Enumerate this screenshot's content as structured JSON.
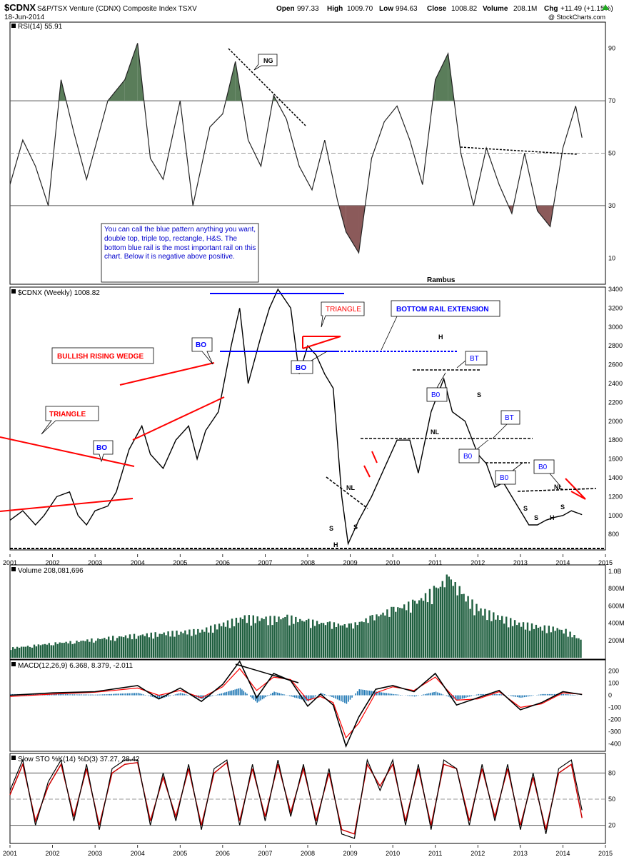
{
  "header": {
    "symbol": "$CDNX",
    "name": "S&P/TSX Venture (CDNX) Composite Index TSXV",
    "date": "18-Jun-2014",
    "open_label": "Open",
    "open": "997.33",
    "high_label": "High",
    "high": "1009.70",
    "low_label": "Low",
    "low": "994.63",
    "close_label": "Close",
    "close": "1008.82",
    "volume_label": "Volume",
    "volume": "208.1M",
    "chg_label": "Chg",
    "chg": "+11.49 (+1.15%)",
    "copyright": "@ StockCharts.com"
  },
  "colors": {
    "price": "#000000",
    "annotation_red": "#ff0000",
    "annotation_blue": "#0000ff",
    "rsi_overbought_fill": "#5a7d5a",
    "rsi_oversold_fill": "#8b5a5a",
    "volume_bars": "#1f5f3f",
    "macd_signal": "#ff0000",
    "macd_histogram": "#1f77b4",
    "sto_d": "#cc0000"
  },
  "chart_data": [
    {
      "type": "line",
      "panel": "rsi",
      "title": "RSI(14) 55.91",
      "ylim": [
        0,
        100
      ],
      "yticks": [
        10,
        30,
        50,
        70,
        90
      ],
      "reference_lines": [
        30,
        50,
        70
      ],
      "x": [
        2001.0,
        2001.3,
        2001.6,
        2001.9,
        2002.2,
        2002.5,
        2002.8,
        2003.0,
        2003.3,
        2003.7,
        2004.0,
        2004.3,
        2004.6,
        2005.0,
        2005.3,
        2005.7,
        2006.0,
        2006.3,
        2006.6,
        2006.9,
        2007.2,
        2007.5,
        2007.8,
        2008.1,
        2008.4,
        2008.7,
        2008.9,
        2009.2,
        2009.5,
        2009.8,
        2010.1,
        2010.4,
        2010.7,
        2011.0,
        2011.3,
        2011.6,
        2011.9,
        2012.2,
        2012.5,
        2012.8,
        2013.1,
        2013.4,
        2013.7,
        2014.0,
        2014.3,
        2014.45
      ],
      "values": [
        38,
        55,
        45,
        30,
        78,
        58,
        40,
        52,
        70,
        78,
        92,
        48,
        40,
        70,
        30,
        60,
        65,
        85,
        55,
        45,
        72,
        63,
        45,
        36,
        55,
        32,
        20,
        12,
        48,
        62,
        68,
        55,
        38,
        78,
        88,
        50,
        30,
        52,
        38,
        27,
        50,
        28,
        22,
        52,
        68,
        55.91
      ],
      "annotations": [
        "NG",
        "Rambus"
      ]
    },
    {
      "type": "line",
      "panel": "price",
      "title": "$CDNX (Weekly) 1008.82",
      "ylim": [
        650,
        3400
      ],
      "yticks": [
        800,
        1000,
        1200,
        1400,
        1600,
        1800,
        2000,
        2200,
        2400,
        2600,
        2800,
        3000,
        3200,
        3400
      ],
      "xticks": [
        "2001",
        "2002",
        "2003",
        "2004",
        "2005",
        "2006",
        "2007",
        "2008",
        "2009",
        "2010",
        "2011",
        "2012",
        "2013",
        "2014",
        "2015"
      ],
      "x": [
        2001.0,
        2001.3,
        2001.6,
        2001.8,
        2002.1,
        2002.4,
        2002.6,
        2002.8,
        2003.0,
        2003.3,
        2003.5,
        2003.8,
        2004.1,
        2004.3,
        2004.6,
        2004.9,
        2005.2,
        2005.4,
        2005.6,
        2005.9,
        2006.2,
        2006.4,
        2006.6,
        2006.9,
        2007.1,
        2007.3,
        2007.6,
        2007.8,
        2008.0,
        2008.2,
        2008.4,
        2008.6,
        2008.8,
        2008.95,
        2009.2,
        2009.5,
        2009.8,
        2010.1,
        2010.4,
        2010.6,
        2010.9,
        2011.2,
        2011.4,
        2011.7,
        2012.0,
        2012.2,
        2012.4,
        2012.6,
        2012.8,
        2013.0,
        2013.2,
        2013.4,
        2013.6,
        2013.8,
        2014.0,
        2014.2,
        2014.45
      ],
      "values": [
        950,
        1050,
        900,
        1000,
        1200,
        1250,
        1000,
        900,
        1050,
        1100,
        1250,
        1700,
        1950,
        1650,
        1500,
        1800,
        1950,
        1600,
        1900,
        2100,
        2800,
        3200,
        2400,
        2900,
        3200,
        3400,
        3200,
        2500,
        2800,
        2700,
        2500,
        2350,
        1200,
        700,
        950,
        1200,
        1500,
        1800,
        1800,
        1450,
        2100,
        2450,
        2100,
        2000,
        1650,
        1550,
        1300,
        1350,
        1200,
        1050,
        900,
        900,
        950,
        980,
        1000,
        1050,
        1008.82
      ],
      "annotations": [
        "TRIANGLE",
        "BULLISH RISING WEDGE",
        "BO",
        "BO",
        "BO",
        "TRIANGLE",
        "BO",
        "BOTTOM RAIL EXTENSION",
        "BT",
        "B0",
        "B0",
        "B0",
        "B0",
        "NL",
        "NL",
        "NL",
        "H",
        "H",
        "H",
        "S",
        "S",
        "S",
        "S",
        "S",
        "S"
      ],
      "note": "You can call the blue pattern anything you want, double top, triple top, rectangle, H&S.  The bottom blue rail is the most important rail on this chart. Below it is negative above positive."
    },
    {
      "type": "bar",
      "panel": "volume",
      "title": "Volume 208,081,696",
      "ylim": [
        0,
        1000000000
      ],
      "yticks": [
        "200M",
        "400M",
        "600M",
        "800M",
        "1.0B"
      ],
      "x": [
        2001.0,
        2001.5,
        2002.0,
        2002.5,
        2003.0,
        2003.5,
        2004.0,
        2004.5,
        2005.0,
        2005.5,
        2006.0,
        2006.5,
        2007.0,
        2007.5,
        2008.0,
        2008.5,
        2009.0,
        2009.5,
        2010.0,
        2010.5,
        2011.0,
        2011.3,
        2011.6,
        2012.0,
        2012.5,
        2013.0,
        2013.5,
        2014.0,
        2014.45
      ],
      "values": [
        120000000,
        150000000,
        180000000,
        200000000,
        230000000,
        260000000,
        280000000,
        300000000,
        320000000,
        340000000,
        420000000,
        500000000,
        480000000,
        500000000,
        450000000,
        420000000,
        400000000,
        500000000,
        600000000,
        680000000,
        850000000,
        1000000000,
        800000000,
        600000000,
        500000000,
        420000000,
        380000000,
        350000000,
        208081696
      ]
    },
    {
      "type": "line",
      "panel": "macd",
      "title": "MACD(12,26,9) 6.368, 8.379, -2.011",
      "ylim": [
        -450,
        280
      ],
      "yticks": [
        -400,
        -300,
        -200,
        -100,
        0,
        100,
        200
      ],
      "x": [
        2001.0,
        2002.0,
        2003.0,
        2004.0,
        2004.5,
        2005.0,
        2005.5,
        2006.0,
        2006.4,
        2006.8,
        2007.2,
        2007.6,
        2008.0,
        2008.3,
        2008.6,
        2008.9,
        2009.2,
        2009.6,
        2010.0,
        2010.5,
        2011.0,
        2011.5,
        2012.0,
        2012.5,
        2013.0,
        2013.5,
        2014.0,
        2014.45
      ],
      "series": [
        {
          "name": "MACD",
          "values": [
            0,
            20,
            30,
            80,
            -30,
            60,
            -50,
            90,
            280,
            -20,
            180,
            120,
            -90,
            10,
            -80,
            -420,
            -180,
            50,
            80,
            30,
            180,
            -80,
            -20,
            40,
            -120,
            -60,
            30,
            6.368
          ]
        },
        {
          "name": "Signal",
          "values": [
            -10,
            10,
            25,
            60,
            0,
            40,
            -20,
            70,
            220,
            40,
            150,
            130,
            -40,
            -10,
            -60,
            -350,
            -230,
            20,
            70,
            40,
            150,
            -40,
            -30,
            30,
            -100,
            -70,
            20,
            8.379
          ]
        },
        {
          "name": "Histogram",
          "values": [
            10,
            10,
            5,
            20,
            -30,
            20,
            -30,
            20,
            60,
            -60,
            30,
            -10,
            -50,
            20,
            -20,
            -70,
            50,
            30,
            10,
            -10,
            30,
            -40,
            10,
            10,
            -20,
            10,
            10,
            -2.011
          ]
        }
      ]
    },
    {
      "type": "line",
      "panel": "stochastic",
      "title": "Slow STO %K(14) %D(3) 37.27, 28.42",
      "ylim": [
        0,
        100
      ],
      "yticks": [
        20,
        50,
        80
      ],
      "reference_lines": [
        20,
        50,
        80
      ],
      "xticks": [
        "2001",
        "2002",
        "2003",
        "2004",
        "2005",
        "2006",
        "2007",
        "2008",
        "2009",
        "2010",
        "2011",
        "2012",
        "2013",
        "2014",
        "2015"
      ],
      "x": [
        2001.0,
        2001.3,
        2001.6,
        2001.9,
        2002.2,
        2002.5,
        2002.8,
        2003.1,
        2003.4,
        2003.7,
        2004.0,
        2004.3,
        2004.6,
        2004.9,
        2005.2,
        2005.5,
        2005.8,
        2006.1,
        2006.4,
        2006.7,
        2007.0,
        2007.3,
        2007.6,
        2007.9,
        2008.2,
        2008.5,
        2008.8,
        2009.1,
        2009.4,
        2009.7,
        2010.0,
        2010.3,
        2010.6,
        2010.9,
        2011.2,
        2011.5,
        2011.8,
        2012.1,
        2012.4,
        2012.7,
        2013.0,
        2013.3,
        2013.6,
        2013.9,
        2014.2,
        2014.45
      ],
      "series": [
        {
          "name": "%K",
          "values": [
            60,
            95,
            20,
            70,
            95,
            25,
            90,
            15,
            85,
            95,
            95,
            20,
            80,
            25,
            90,
            15,
            85,
            95,
            20,
            90,
            25,
            95,
            30,
            90,
            20,
            85,
            10,
            5,
            95,
            60,
            95,
            20,
            90,
            15,
            95,
            85,
            20,
            90,
            25,
            90,
            15,
            80,
            10,
            85,
            95,
            37.27
          ]
        },
        {
          "name": "%D",
          "values": [
            55,
            90,
            25,
            65,
            90,
            30,
            85,
            20,
            80,
            90,
            92,
            25,
            75,
            30,
            85,
            20,
            80,
            92,
            25,
            85,
            30,
            90,
            35,
            85,
            25,
            80,
            15,
            10,
            90,
            65,
            90,
            25,
            85,
            20,
            90,
            85,
            25,
            85,
            30,
            85,
            20,
            75,
            15,
            80,
            90,
            28.42
          ]
        }
      ]
    }
  ]
}
